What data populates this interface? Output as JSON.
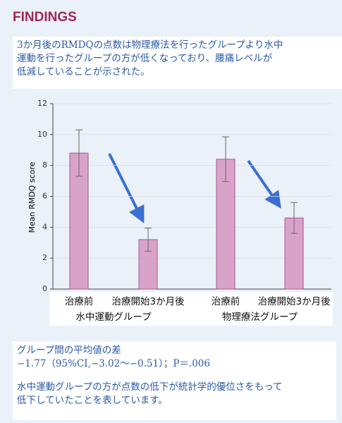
{
  "header": "FINDINGS",
  "summary": [
    "3か月後のRMDQの点数は物理療法を行ったグループより水中",
    "運動を行ったグループの方が低くなっており、腰痛レベルが",
    "低減していることが示された。"
  ],
  "footer": [
    "グループ間の平均値の差",
    "−1.77（95%CI,−3.02〜−0.51）；P＝.006",
    "水中運動グループの方が点数の低下が統計学的優位さをもって",
    "低下していたことを表しています。"
  ],
  "chart_data": {
    "type": "bar",
    "ylabel": "Mean RMDQ score",
    "categories": [
      "治療前",
      "治療開始3か月後",
      "治療前",
      "治療開始3か月後"
    ],
    "groups": [
      "水中運動グループ",
      "物理療法グループ"
    ],
    "values": [
      8.8,
      3.2,
      8.4,
      4.6
    ],
    "errors": [
      1.5,
      0.75,
      1.45,
      1.0
    ],
    "color": "#d9a3c9",
    "ylim": [
      0,
      12
    ],
    "yticks": [
      0,
      2,
      4,
      6,
      8,
      10,
      12
    ],
    "grid": true
  }
}
